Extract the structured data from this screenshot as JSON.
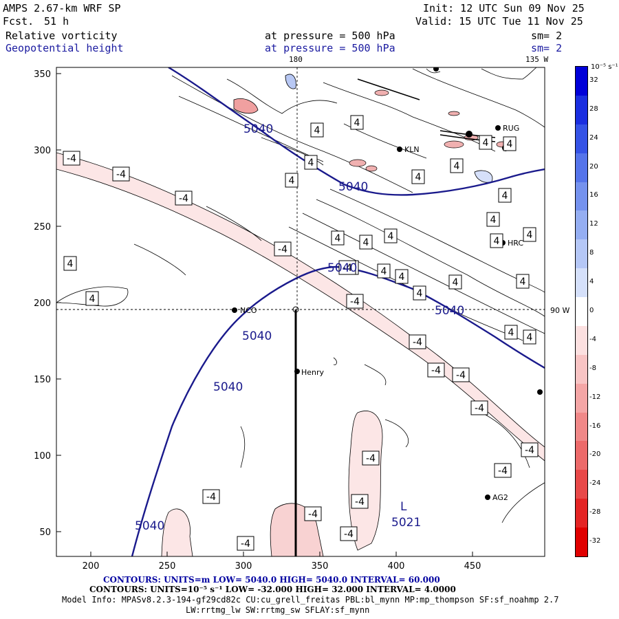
{
  "header": {
    "model": "AMPS 2.67-km WRF SP",
    "fcst_label": "Fcst.",
    "fcst_value": "51 h",
    "init": "Init: 12 UTC Sun 09 Nov 25",
    "valid": "Valid: 15 UTC Tue 11 Nov 25",
    "field1": "Relative vorticity",
    "field2": "Geopotential height",
    "level1": "at pressure =  500 hPa",
    "level2": "at pressure =  500 hPa",
    "sm1": "sm= 2",
    "sm2": "sm= 2"
  },
  "map": {
    "lon_top_1": "180",
    "lon_top_2": "135 W",
    "lon_right": "90 W",
    "x_ticks": [
      "200",
      "250",
      "300",
      "350",
      "400",
      "450"
    ],
    "y_ticks": [
      "350",
      "300",
      "250",
      "200",
      "150",
      "100",
      "50"
    ],
    "stations": [
      {
        "name": "NCO"
      },
      {
        "name": "Henry"
      },
      {
        "name": "RUG"
      },
      {
        "name": "KLN"
      },
      {
        "name": "HRC"
      },
      {
        "name": "AG2"
      }
    ],
    "height_labels": [
      "5040",
      "5040",
      "5040",
      "5040",
      "5040",
      "5040",
      "5040"
    ],
    "low_label": "L",
    "low_value": "5021",
    "vort_labels_pos": [
      "4",
      "4",
      "4",
      "4",
      "4",
      "4",
      "4",
      "4",
      "4",
      "4",
      "4",
      "4",
      "4",
      "4",
      "4",
      "4",
      "4",
      "4",
      "4",
      "4",
      "4",
      "4",
      "4",
      "4",
      "4"
    ],
    "vort_labels_neg": [
      "-4",
      "-4",
      "-4",
      "-4",
      "-4",
      "-4",
      "-4",
      "-4",
      "-4",
      "-4",
      "-4",
      "-4",
      "-4",
      "-4",
      "-4",
      "-4",
      "-4",
      "-4"
    ]
  },
  "colorbar": {
    "unit": "10⁻⁵ s⁻¹",
    "labels": [
      "32",
      "28",
      "24",
      "20",
      "16",
      "12",
      "8",
      "4",
      "0",
      "-4",
      "-8",
      "-12",
      "-16",
      "-20",
      "-24",
      "-28",
      "-32"
    ],
    "colors": [
      "#0000d8",
      "#1a2ee0",
      "#3553e6",
      "#5574ea",
      "#7592ee",
      "#95aef2",
      "#b5c7f6",
      "#d5e0fa",
      "#ffffff",
      "#fce0e0",
      "#f8c4c4",
      "#f4a6a6",
      "#f08888",
      "#ec6a6a",
      "#e84848",
      "#e42424",
      "#e00000"
    ]
  },
  "footer": {
    "line1": "CONTOURS:  UNITS=m  LOW=  5040.0        HIGH=  5040.0        INTERVAL=   60.000",
    "line2": "CONTOURS:  UNITS=10⁻⁵ s⁻¹   LOW= -32.000        HIGH=  32.000        INTERVAL=   4.0000",
    "line3": "Model Info: MPASv8.2.3-194-gf29cd82c CU:cu_grell_freitas PBL:bl_mynn MP:mp_thompson SF:sf_noahmp 2.7",
    "line4": "LW:rrtmg_lw SW:rrtmg_sw SFLAY:sf_mynn"
  }
}
